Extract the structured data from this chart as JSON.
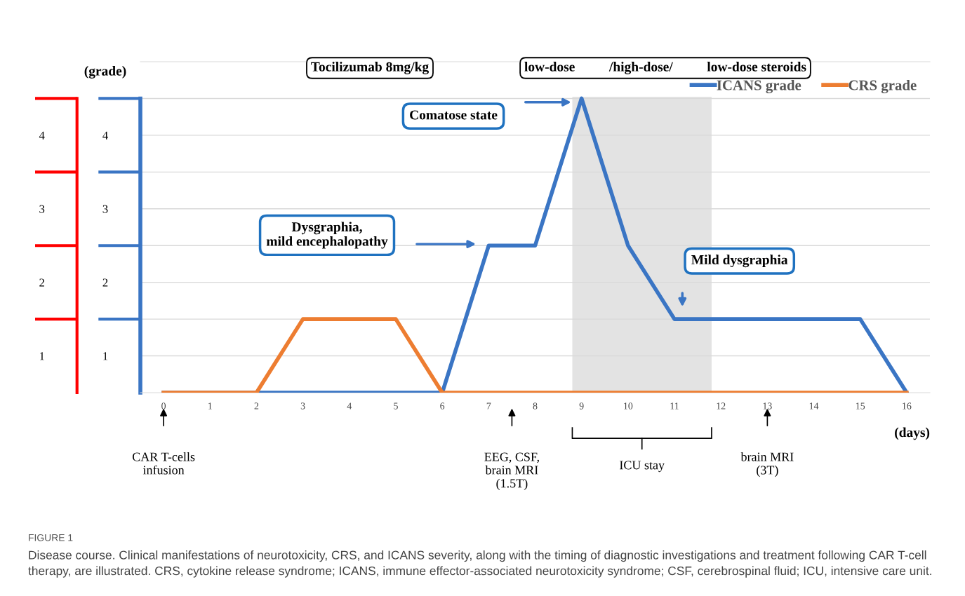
{
  "chart_data": {
    "type": "line",
    "xlabel": "(days)",
    "y2label": "(grade)",
    "x": [
      0,
      1,
      2,
      3,
      4,
      5,
      6,
      7,
      8,
      9,
      10,
      11,
      12,
      13,
      14,
      15,
      16
    ],
    "series": [
      {
        "name": "ICANS grade",
        "color": "#3a75c4",
        "values": [
          0,
          0,
          0,
          0,
          0,
          0,
          0,
          2,
          2,
          4,
          2,
          1,
          1,
          1,
          1,
          1,
          0
        ]
      },
      {
        "name": "CRS grade",
        "color": "#ed7d31",
        "values": [
          0,
          0,
          0,
          1,
          1,
          1,
          0,
          0,
          0,
          0,
          0,
          0,
          0,
          0,
          0,
          0,
          0
        ]
      }
    ],
    "xlim": [
      -0.5,
      16.5
    ],
    "xticks": [
      0,
      1,
      2,
      3,
      4,
      5,
      6,
      7,
      8,
      9,
      10,
      11,
      12,
      13,
      14,
      15,
      16
    ],
    "ylim": [
      0,
      4.5
    ],
    "yticks": [
      {
        "value": 0.5,
        "label": "1"
      },
      {
        "value": 1,
        "label": null
      },
      {
        "value": 1.5,
        "label": "2"
      },
      {
        "value": 2,
        "label": null
      },
      {
        "value": 2.5,
        "label": "3"
      },
      {
        "value": 3,
        "label": null
      },
      {
        "value": 3.5,
        "label": "4"
      },
      {
        "value": 4,
        "label": null
      }
    ],
    "y2lim": [
      0,
      4.5
    ],
    "y2ticks": [
      {
        "value": 0.5,
        "label": "1"
      },
      {
        "value": 1,
        "label": null
      },
      {
        "value": 1.5,
        "label": "2"
      },
      {
        "value": 2,
        "label": null
      },
      {
        "value": 2.5,
        "label": "3"
      },
      {
        "value": 3,
        "label": null
      },
      {
        "value": 3.5,
        "label": "4"
      },
      {
        "value": 4,
        "label": null
      }
    ],
    "bands": [
      {
        "axis": "x",
        "from": 8.8,
        "to": 11.8,
        "color": "#dcdcdc"
      }
    ],
    "grid": "y",
    "legend": "top right",
    "line_style": "solid",
    "marker": "none",
    "annotations": [
      "Tocilizumab 8mg/kg",
      "low-dose          /high-dose/          low-dose steroids",
      "Comatose state",
      "Dysgraphia,\nmild encephalopathy",
      "Mild dysgraphia",
      "CAR T-cells\ninfusion",
      "EEG, CSF,\nbrain MRI\n(1.5T)",
      "ICU stay",
      "brain MRI\n(3T)",
      "FIGURE 1",
      "Disease course. Clinical manifestations of neurotoxicity, CRS, and ICANS severity, along with the timing of diagnostic investigations and treatment following CAR T-cell therapy, are illustrated. CRS, cytokine release syndrome; ICANS, immune effector-associated neurotoxicity syndrome; CSF, cerebrospinal fluid; ICU, intensive care unit."
    ]
  }
}
